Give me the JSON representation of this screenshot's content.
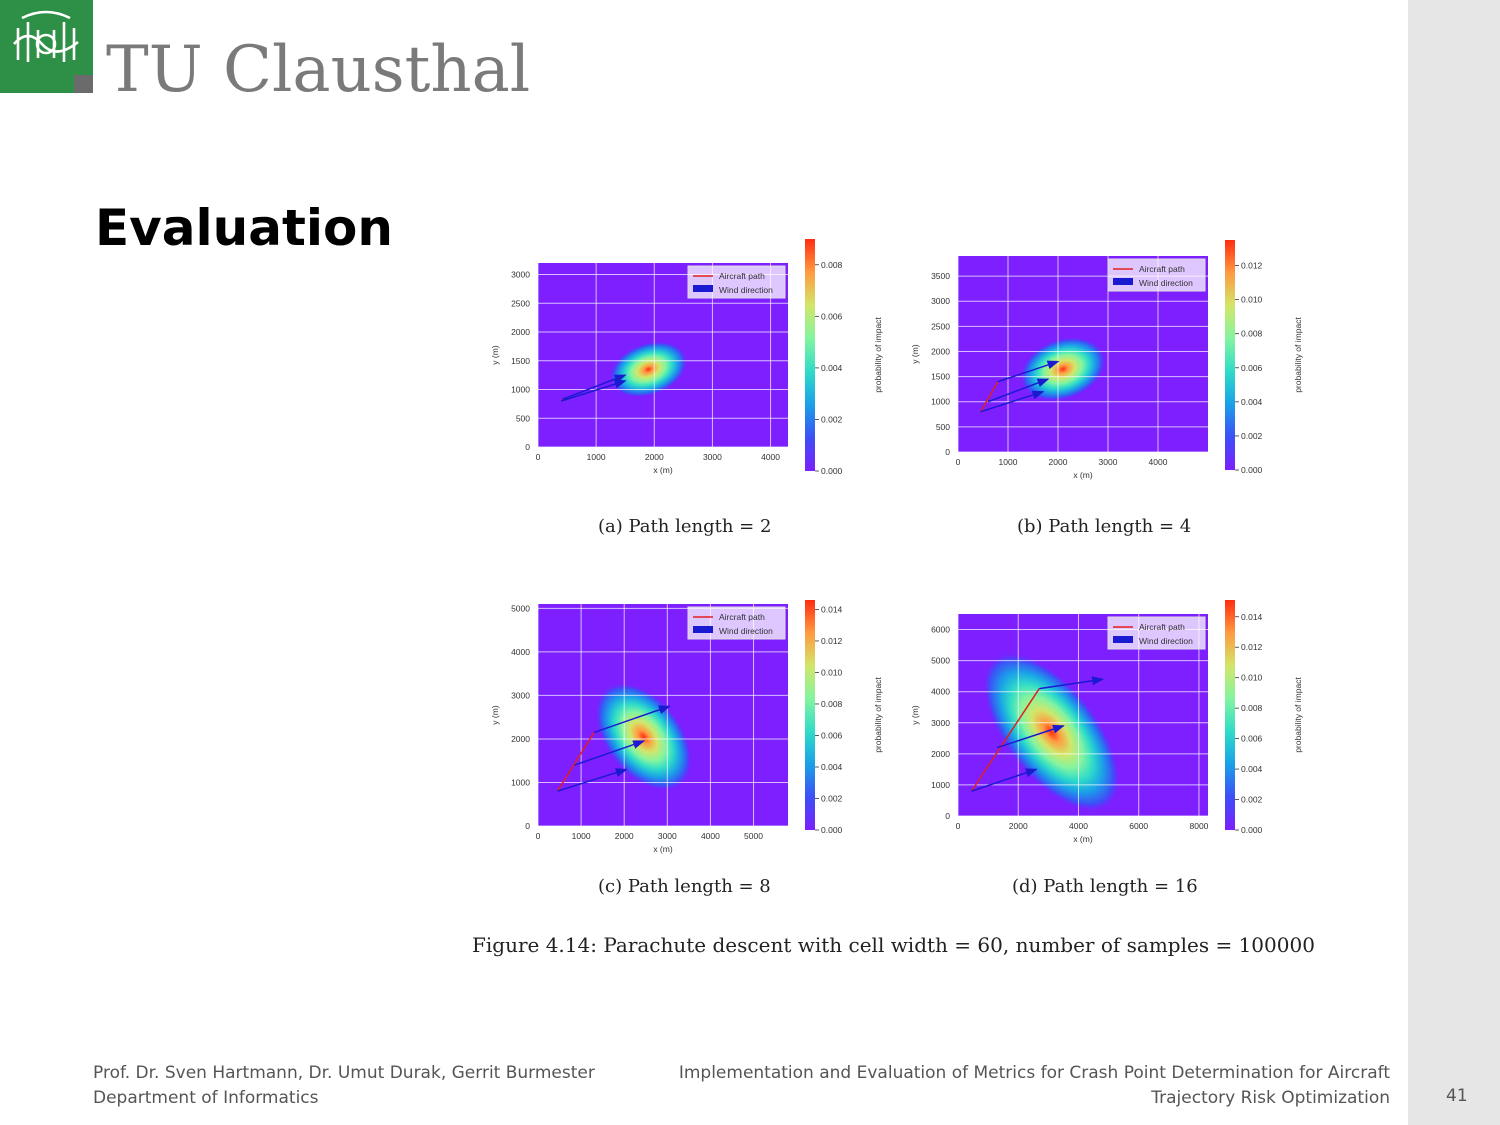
{
  "header": {
    "logo_text": "TU Clausthal"
  },
  "slide": {
    "title": "Evaluation",
    "figure_caption": "Figure 4.14: Parachute descent with cell width = 60, number of samples = 100000"
  },
  "chart_data": [
    {
      "type": "heatmap",
      "caption": "(a) Path length = 2",
      "xlabel": "x (m)",
      "ylabel": "y (m)",
      "colorbar_label": "probability of impact",
      "xlim": [
        0,
        4300
      ],
      "ylim": [
        0,
        3200
      ],
      "clim": [
        0,
        0.009
      ],
      "xticks": [
        0,
        1000,
        2000,
        3000,
        4000
      ],
      "yticks": [
        0,
        500,
        1000,
        1500,
        2000,
        2500,
        3000
      ],
      "cticks": [
        0.0,
        0.002,
        0.004,
        0.006,
        0.008
      ],
      "legend": [
        "Aircraft path",
        "Wind direction"
      ],
      "legend_position": "top-right",
      "grid": true,
      "hotspot": {
        "x": 1900,
        "y": 1350,
        "peak": 0.0088
      },
      "aircraft_path": [
        [
          400,
          800
        ],
        [
          420,
          830
        ]
      ],
      "wind_arrows": [
        [
          [
            400,
            800
          ],
          [
            1500,
            1150
          ]
        ],
        [
          [
            420,
            830
          ],
          [
            1500,
            1250
          ]
        ]
      ]
    },
    {
      "type": "heatmap",
      "caption": "(b) Path length = 4",
      "xlabel": "x (m)",
      "ylabel": "y (m)",
      "colorbar_label": "probability of impact",
      "xlim": [
        0,
        5000
      ],
      "ylim": [
        0,
        3900
      ],
      "clim": [
        0,
        0.0135
      ],
      "xticks": [
        0,
        1000,
        2000,
        3000,
        4000
      ],
      "yticks": [
        0,
        500,
        1000,
        1500,
        2000,
        2500,
        3000,
        3500
      ],
      "cticks": [
        0.0,
        0.002,
        0.004,
        0.006,
        0.008,
        0.01,
        0.012
      ],
      "legend": [
        "Aircraft path",
        "Wind direction"
      ],
      "legend_position": "top-right",
      "grid": true,
      "hotspot": {
        "x": 2100,
        "y": 1650,
        "peak": 0.0128
      },
      "aircraft_path": [
        [
          450,
          800
        ],
        [
          800,
          1400
        ]
      ],
      "wind_arrows": [
        [
          [
            450,
            800
          ],
          [
            1700,
            1200
          ]
        ],
        [
          [
            600,
            1000
          ],
          [
            1800,
            1450
          ]
        ],
        [
          [
            800,
            1400
          ],
          [
            2000,
            1800
          ]
        ]
      ]
    },
    {
      "type": "heatmap",
      "caption": "(c) Path length = 8",
      "xlabel": "x (m)",
      "ylabel": "y (m)",
      "colorbar_label": "probability of impact",
      "xlim": [
        0,
        5800
      ],
      "ylim": [
        0,
        5100
      ],
      "clim": [
        0,
        0.0146
      ],
      "xticks": [
        0,
        1000,
        2000,
        3000,
        4000,
        5000
      ],
      "yticks": [
        0,
        1000,
        2000,
        3000,
        4000,
        5000
      ],
      "cticks": [
        0.0,
        0.002,
        0.004,
        0.006,
        0.008,
        0.01,
        0.012,
        0.014
      ],
      "legend": [
        "Aircraft path",
        "Wind direction"
      ],
      "legend_position": "top-right",
      "grid": true,
      "hotspot": {
        "x": 2450,
        "y": 2050,
        "peak": 0.014
      },
      "aircraft_path": [
        [
          450,
          800
        ],
        [
          1300,
          2150
        ]
      ],
      "wind_arrows": [
        [
          [
            450,
            800
          ],
          [
            2050,
            1300
          ]
        ],
        [
          [
            850,
            1400
          ],
          [
            2450,
            1950
          ]
        ],
        [
          [
            1300,
            2150
          ],
          [
            3050,
            2750
          ]
        ]
      ]
    },
    {
      "type": "heatmap",
      "caption": "(d) Path length = 16",
      "xlabel": "x (m)",
      "ylabel": "y (m)",
      "colorbar_label": "probability of impact",
      "xlim": [
        0,
        8300
      ],
      "ylim": [
        0,
        6500
      ],
      "clim": [
        0,
        0.0151
      ],
      "xticks": [
        0,
        2000,
        4000,
        6000,
        8000
      ],
      "yticks": [
        0,
        1000,
        2000,
        3000,
        4000,
        5000,
        6000
      ],
      "cticks": [
        0.0,
        0.002,
        0.004,
        0.006,
        0.008,
        0.01,
        0.012,
        0.014
      ],
      "legend": [
        "Aircraft path",
        "Wind direction"
      ],
      "legend_position": "top-right",
      "grid": true,
      "hotspot": {
        "x": 3100,
        "y": 2700,
        "peak": 0.0145
      },
      "aircraft_path": [
        [
          450,
          800
        ],
        [
          2700,
          4100
        ]
      ],
      "wind_arrows": [
        [
          [
            450,
            800
          ],
          [
            2600,
            1500
          ]
        ],
        [
          [
            1300,
            2200
          ],
          [
            3500,
            2900
          ]
        ],
        [
          [
            2700,
            4100
          ],
          [
            4800,
            4400
          ]
        ]
      ]
    }
  ],
  "footer": {
    "authors": "Prof. Dr. Sven Hartmann, Dr. Umut Durak, Gerrit Burmester",
    "department": "Department of Informatics",
    "title_line1": "Implementation and Evaluation of Metrics for Crash Point Determination for Aircraft",
    "title_line2": "Trajectory Risk Optimization",
    "page": "41"
  },
  "colors": {
    "brand_green": "#2e8f47",
    "sidebar_gray": "#e6e6e6",
    "aircraft_path": "#e02020",
    "wind_arrow": "#1a1ad0"
  }
}
